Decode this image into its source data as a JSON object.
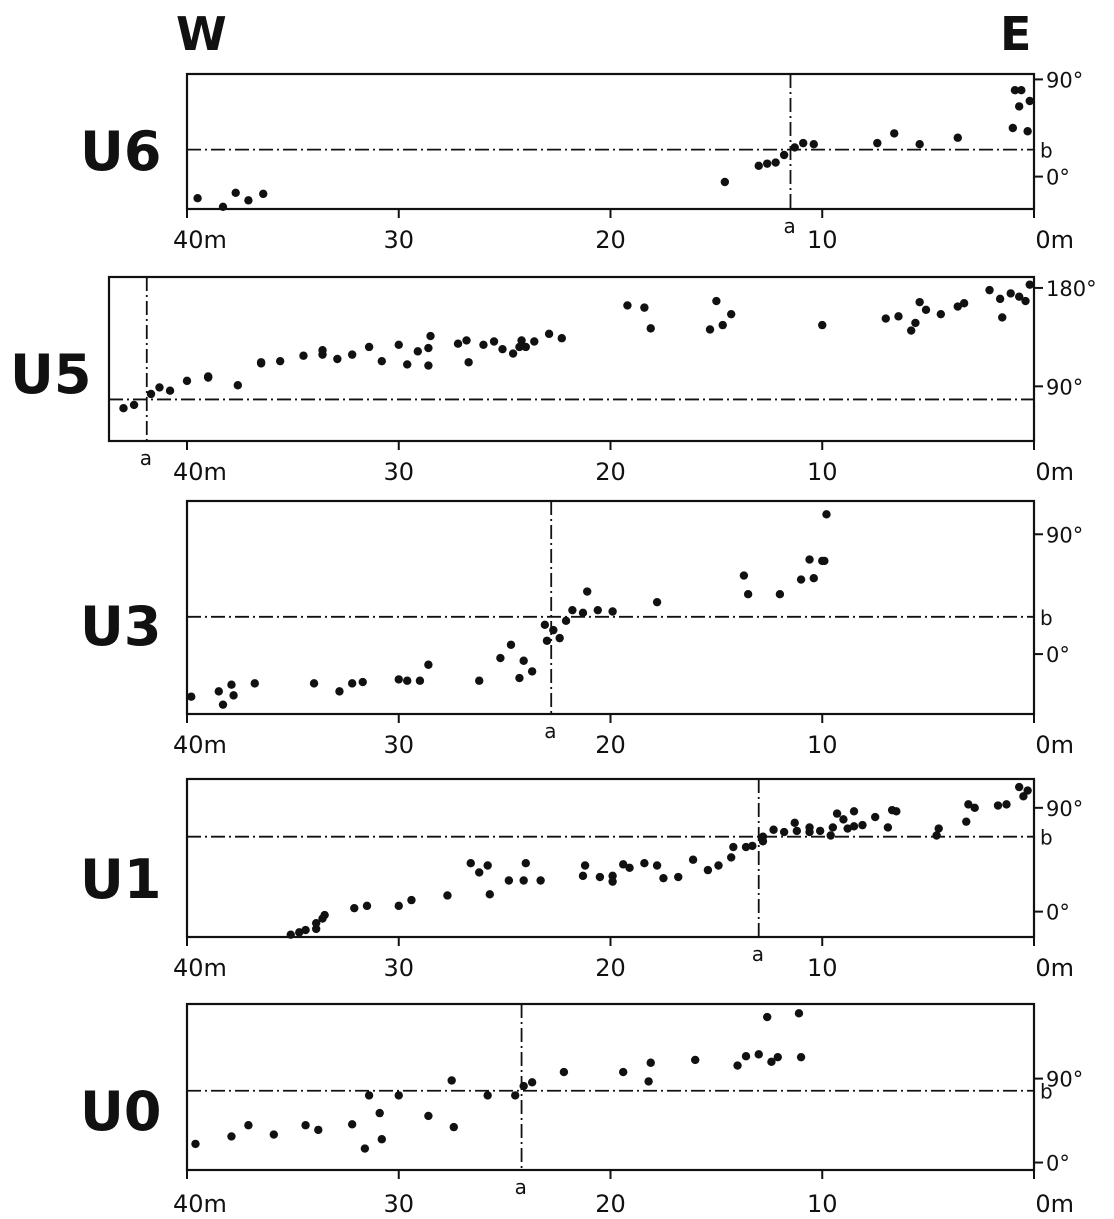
{
  "figure": {
    "west_label": "W",
    "east_label": "E"
  },
  "chart_data": [
    {
      "type": "scatter",
      "panel": "U6",
      "xlim": [
        40,
        0
      ],
      "xtick_labels": [
        "40m",
        "30",
        "20",
        "10",
        "0m"
      ],
      "ylim": [
        -30,
        95
      ],
      "ytick_labels": [
        "90°",
        "0°"
      ],
      "b_value": 25,
      "b_label": "b",
      "a_value": 11.5,
      "a_label": "a",
      "x": [
        39.5,
        38.3,
        37.7,
        37.1,
        36.4,
        14.6,
        13.0,
        12.6,
        12.2,
        11.8,
        11.3,
        10.9,
        10.4,
        7.4,
        6.6,
        5.4,
        3.6,
        1.0,
        0.7,
        0.9,
        0.6,
        0.3,
        0.2
      ],
      "y": [
        -20,
        -28,
        -15,
        -22,
        -16,
        -5,
        10,
        12,
        13,
        20,
        27,
        31,
        30,
        31,
        40,
        30,
        36,
        45,
        65,
        80,
        80,
        42,
        70
      ]
    },
    {
      "type": "scatter",
      "panel": "U5",
      "xlim": [
        44,
        0
      ],
      "xtick_labels": [
        "40m",
        "30",
        "20",
        "10",
        "0m"
      ],
      "ylim": [
        40,
        190
      ],
      "ytick_labels": [
        "180°",
        "90°"
      ],
      "b_value": 78,
      "b_label": "",
      "a_value": 41.9,
      "a_label": "a",
      "x": [
        43.0,
        42.5,
        41.7,
        41.3,
        40.8,
        40.0,
        39.0,
        39.0,
        37.6,
        36.5,
        36.5,
        35.6,
        34.5,
        33.6,
        33.6,
        32.9,
        32.2,
        31.4,
        30.8,
        30.0,
        29.6,
        29.1,
        28.6,
        28.6,
        28.5,
        27.2,
        26.8,
        26.7,
        26.0,
        25.5,
        25.1,
        24.6,
        24.3,
        24.2,
        24.0,
        23.6,
        22.9,
        22.3,
        19.2,
        18.4,
        18.1,
        15.3,
        15.0,
        14.7,
        14.3,
        10.0,
        7.0,
        6.4,
        5.8,
        5.6,
        5.4,
        5.1,
        4.4,
        3.6,
        3.3,
        2.1,
        1.6,
        1.5,
        1.1,
        0.7,
        0.4,
        0.2
      ],
      "y": [
        70,
        73,
        83,
        89,
        86,
        95,
        99,
        98,
        91,
        111,
        112,
        113,
        118,
        119,
        123,
        115,
        119,
        126,
        113,
        128,
        110,
        122,
        125,
        109,
        136,
        129,
        132,
        112,
        128,
        131,
        124,
        120,
        126,
        132,
        126,
        131,
        138,
        134,
        164,
        162,
        143,
        142,
        168,
        146,
        156,
        146,
        152,
        154,
        141,
        148,
        167,
        160,
        156,
        163,
        166,
        178,
        170,
        153,
        175,
        172,
        168,
        183
      ]
    },
    {
      "type": "scatter",
      "panel": "U3",
      "xlim": [
        40,
        0
      ],
      "xtick_labels": [
        "40m",
        "30",
        "20",
        "10",
        "0m"
      ],
      "ylim": [
        -45,
        115
      ],
      "ytick_labels": [
        "90°",
        "0°"
      ],
      "b_value": 28,
      "b_label": "b",
      "a_value": 22.8,
      "a_label": "a",
      "x": [
        39.8,
        38.5,
        38.3,
        37.9,
        37.8,
        36.8,
        34.0,
        32.8,
        32.2,
        31.7,
        30.0,
        29.6,
        29.0,
        28.6,
        26.2,
        25.2,
        24.7,
        24.3,
        24.1,
        23.7,
        23.0,
        23.1,
        22.7,
        22.4,
        22.1,
        21.8,
        21.3,
        21.1,
        20.6,
        19.9,
        17.8,
        13.7,
        13.5,
        12.0,
        11.0,
        10.4,
        10.6,
        10.0,
        9.9,
        9.8
      ],
      "y": [
        -32,
        -28,
        -38,
        -23,
        -31,
        -22,
        -22,
        -28,
        -22,
        -21,
        -19,
        -20,
        -20,
        -8,
        -20,
        -3,
        7,
        -18,
        -5,
        -13,
        10,
        22,
        18,
        12,
        25,
        33,
        31,
        47,
        33,
        32,
        39,
        59,
        45,
        45,
        56,
        57,
        71,
        70,
        70,
        105
      ]
    },
    {
      "type": "scatter",
      "panel": "U1",
      "xlim": [
        40,
        0
      ],
      "xtick_labels": [
        "40m",
        "30",
        "20",
        "10",
        "0m"
      ],
      "ylim": [
        -22,
        115
      ],
      "ytick_labels": [
        "90°",
        "0°"
      ],
      "b_value": 65,
      "b_label": "b",
      "a_value": 13.0,
      "a_label": "a",
      "x": [
        35.1,
        34.7,
        34.4,
        33.9,
        33.9,
        33.6,
        33.5,
        32.1,
        31.5,
        30.0,
        29.4,
        27.7,
        26.6,
        26.2,
        25.8,
        25.7,
        24.8,
        24.1,
        24.0,
        23.3,
        21.3,
        21.2,
        20.5,
        19.9,
        19.9,
        19.4,
        19.1,
        18.4,
        17.8,
        17.5,
        16.8,
        16.1,
        15.4,
        14.9,
        14.3,
        14.2,
        13.6,
        13.3,
        12.8,
        12.8,
        12.3,
        11.8,
        11.3,
        11.2,
        10.6,
        10.6,
        10.1,
        9.6,
        9.5,
        9.3,
        9.0,
        8.8,
        8.5,
        8.5,
        8.1,
        7.5,
        6.9,
        6.7,
        6.5,
        4.5,
        4.6,
        3.2,
        3.1,
        2.8,
        1.7,
        1.3,
        0.7,
        0.5,
        0.3
      ],
      "y": [
        -20,
        -18,
        -16,
        -15,
        -10,
        -6,
        -3,
        3,
        5,
        5,
        10,
        14,
        42,
        34,
        40,
        15,
        27,
        27,
        42,
        27,
        31,
        40,
        30,
        31,
        26,
        41,
        38,
        42,
        40,
        29,
        30,
        45,
        36,
        40,
        47,
        56,
        56,
        57,
        61,
        65,
        71,
        69,
        77,
        70,
        73,
        69,
        70,
        66,
        73,
        85,
        80,
        72,
        74,
        87,
        75,
        82,
        73,
        88,
        87,
        72,
        66,
        78,
        93,
        90,
        92,
        93,
        108,
        100,
        105
      ]
    },
    {
      "type": "scatter",
      "panel": "U0",
      "xlim": [
        40,
        0
      ],
      "xtick_labels": [
        "40m",
        "30",
        "20",
        "10",
        "0m"
      ],
      "ylim": [
        -8,
        170
      ],
      "ytick_labels": [
        "90°",
        "0°"
      ],
      "b_value": 77,
      "b_label": "b",
      "a_value": 24.2,
      "a_label": "a",
      "x": [
        39.6,
        37.9,
        37.1,
        35.9,
        34.4,
        33.8,
        32.2,
        31.6,
        31.4,
        30.9,
        30.8,
        30.0,
        28.6,
        27.5,
        27.4,
        25.8,
        24.5,
        24.1,
        23.7,
        22.2,
        19.4,
        18.2,
        18.1,
        16.0,
        14.0,
        13.6,
        13.0,
        12.6,
        12.4,
        12.1,
        11.1,
        11.0
      ],
      "y": [
        20,
        28,
        40,
        30,
        40,
        35,
        41,
        15,
        72,
        53,
        25,
        72,
        50,
        88,
        38,
        72,
        72,
        82,
        86,
        97,
        97,
        87,
        107,
        110,
        104,
        114,
        116,
        156,
        108,
        113,
        160,
        113
      ]
    }
  ]
}
